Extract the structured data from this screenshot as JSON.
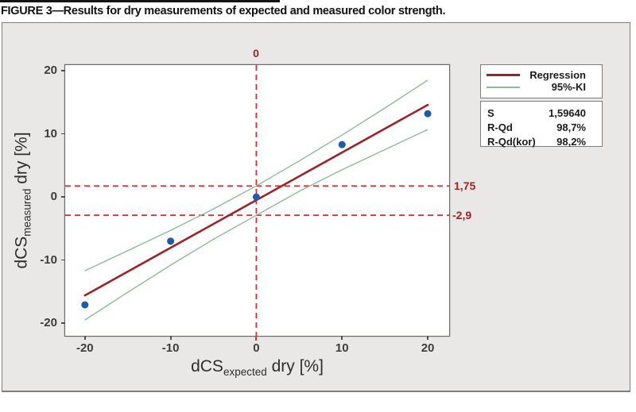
{
  "figure": {
    "caption": "FIGURE 3—Results for dry measurements of expected and measured color strength.",
    "colors": {
      "figure_bg": "#E9E8E6",
      "plot_bg": "#FFFFFF",
      "frame": "#6B6B6B",
      "regression": "#9B2428",
      "ci": "#8CBA9B",
      "ref_dashed": "#C63939",
      "ref_label": "#9B2428",
      "point": "#1F5BA8",
      "tick": "#4F4F4F"
    }
  },
  "legend": {
    "entries": [
      {
        "label": "Regression",
        "color": "#9B2428"
      },
      {
        "label": "95%-KI",
        "color": "#8CBA9B"
      }
    ]
  },
  "stats": {
    "rows": [
      {
        "label": "S",
        "value": "1,59640"
      },
      {
        "label": "R-Qd",
        "value": "98,7%"
      },
      {
        "label": "R-Qd(kor)",
        "value": "98,2%"
      }
    ]
  },
  "axes": {
    "x": {
      "title_main": "dCS",
      "title_sub": "expected",
      "title_rest": " dry [%]",
      "ticks": [
        -20,
        -10,
        0,
        10,
        20
      ]
    },
    "y": {
      "title_main": "dCS",
      "title_sub": "measured",
      "title_rest": " dry [%]",
      "ticks": [
        20,
        10,
        0,
        -10,
        -20
      ]
    }
  },
  "ref_lines": {
    "vertical": {
      "x": 0,
      "label": "0"
    },
    "horizontal": [
      {
        "y": 1.75,
        "label": "1,75"
      },
      {
        "y": -2.9,
        "label": "-2,9"
      }
    ]
  },
  "chart_data": {
    "type": "scatter",
    "title": "FIGURE 3—Results for dry measurements of expected and measured color strength.",
    "xlabel": "dCS_expected dry [%]",
    "ylabel": "dCS_measured dry [%]",
    "xlim": [
      -22.3,
      22.5
    ],
    "ylim": [
      -22,
      20.9
    ],
    "grid": false,
    "legend_position": "upper right",
    "points": [
      [
        -20,
        -17.1
      ],
      [
        -10,
        -7
      ],
      [
        0,
        0
      ],
      [
        10,
        8.3
      ],
      [
        20,
        13.2
      ]
    ],
    "regression": {
      "x": [
        -20,
        20
      ],
      "y": [
        -15.6,
        14.6
      ]
    },
    "ci_upper": {
      "x": [
        -20,
        -15,
        -10,
        -5,
        0,
        5,
        10,
        15,
        20
      ],
      "y": [
        -11.7,
        -8.5,
        -5.3,
        -1.9,
        1.75,
        5.7,
        9.8,
        14.1,
        18.5
      ]
    },
    "ci_lower": {
      "x": [
        -20,
        -15,
        -10,
        -5,
        0,
        5,
        10,
        15,
        20
      ],
      "y": [
        -19.5,
        -15.1,
        -10.8,
        -6.7,
        -2.9,
        0.9,
        4.3,
        7.5,
        10.7
      ]
    },
    "stats": {
      "S": "1,59640",
      "R-Qd": "98,7%",
      "R-Qd(kor)": "98,2%"
    }
  }
}
